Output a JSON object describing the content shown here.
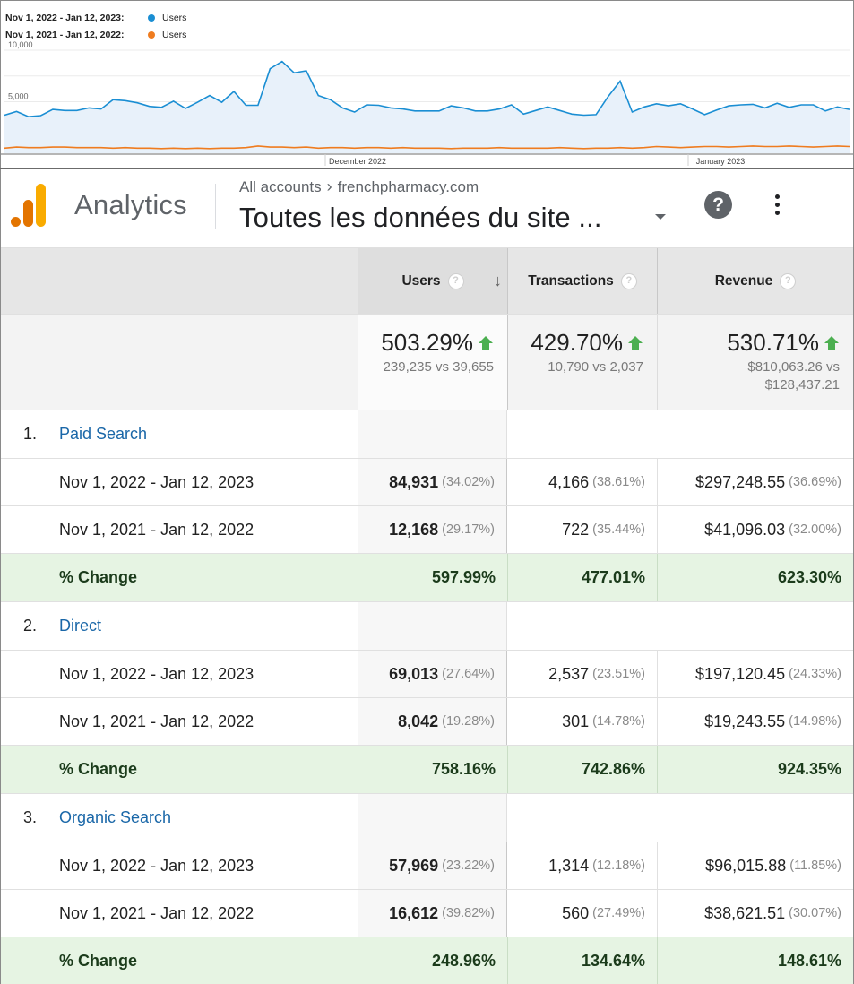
{
  "chart": {
    "legend": [
      {
        "period": "Nov 1, 2022 - Jan 12, 2023:",
        "series": "Users",
        "color": "#1a8ed3"
      },
      {
        "period": "Nov 1, 2021 - Jan 12, 2022:",
        "series": "Users",
        "color": "#ef7c1f"
      }
    ],
    "y_ticks": [
      "10,000",
      "5,000"
    ],
    "x_ticks": [
      "December 2022",
      "January 2023"
    ]
  },
  "chart_data": {
    "type": "line",
    "ylim": [
      0,
      10000
    ],
    "xlabel": "",
    "ylabel": "",
    "series": [
      {
        "name": "Users",
        "period": "Nov 1, 2022 - Jan 12, 2023",
        "color": "#1a8ed3",
        "values": [
          3700,
          4050,
          3550,
          3650,
          4250,
          4150,
          4150,
          4400,
          4300,
          5200,
          5100,
          4900,
          4550,
          4450,
          5050,
          4350,
          4950,
          5600,
          4950,
          6000,
          4650,
          4650,
          8200,
          8900,
          7800,
          8000,
          5600,
          5200,
          4400,
          4000,
          4700,
          4650,
          4400,
          4300,
          4100,
          4100,
          4100,
          4600,
          4400,
          4100,
          4100,
          4300,
          4700,
          3800,
          4150,
          4500,
          4150,
          3800,
          3700,
          3750,
          5500,
          7000,
          4000,
          4500,
          4800,
          4600,
          4800,
          4300,
          3750,
          4200,
          4600,
          4700,
          4750,
          4400,
          4850,
          4450,
          4700,
          4700,
          4100,
          4500,
          4250
        ]
      },
      {
        "name": "Users",
        "period": "Nov 1, 2021 - Jan 12, 2022",
        "color": "#ef7c1f",
        "values": [
          500,
          600,
          550,
          550,
          600,
          600,
          550,
          550,
          550,
          500,
          550,
          500,
          500,
          450,
          500,
          450,
          500,
          450,
          500,
          500,
          550,
          700,
          600,
          600,
          550,
          600,
          500,
          550,
          550,
          500,
          550,
          550,
          500,
          550,
          500,
          500,
          500,
          450,
          500,
          500,
          500,
          550,
          500,
          500,
          500,
          500,
          550,
          500,
          450,
          500,
          500,
          550,
          500,
          550,
          650,
          600,
          550,
          600,
          650,
          650,
          600,
          650,
          700,
          650,
          650,
          700,
          650,
          600,
          650,
          700,
          650
        ]
      }
    ]
  },
  "header": {
    "app_name": "Analytics",
    "breadcrumb_root": "All accounts",
    "breadcrumb_sep": "›",
    "property": "frenchpharmacy.com",
    "view": "Toutes les données du site ...",
    "help_label": "?"
  },
  "table": {
    "columns": [
      "Users",
      "Transactions",
      "Revenue"
    ],
    "summary": {
      "users": {
        "change": "503.29%",
        "compare": "239,235 vs 39,655"
      },
      "transactions": {
        "change": "429.70%",
        "compare": "10,790 vs 2,037"
      },
      "revenue": {
        "change": "530.71%",
        "compare_a": "$810,063.26 vs",
        "compare_b": "$128,437.21"
      }
    },
    "channels": [
      {
        "num": "1.",
        "name": "Paid Search",
        "current": {
          "period": "Nov 1, 2022 - Jan 12, 2023",
          "users": "84,931",
          "users_pct": "(34.02%)",
          "tx": "4,166",
          "tx_pct": "(38.61%)",
          "rev": "$297,248.55",
          "rev_pct": "(36.69%)"
        },
        "previous": {
          "period": "Nov 1, 2021 - Jan 12, 2022",
          "users": "12,168",
          "users_pct": "(29.17%)",
          "tx": "722",
          "tx_pct": "(35.44%)",
          "rev": "$41,096.03",
          "rev_pct": "(32.00%)"
        },
        "change": {
          "label": "% Change",
          "users": "597.99%",
          "tx": "477.01%",
          "rev": "623.30%"
        }
      },
      {
        "num": "2.",
        "name": "Direct",
        "current": {
          "period": "Nov 1, 2022 - Jan 12, 2023",
          "users": "69,013",
          "users_pct": "(27.64%)",
          "tx": "2,537",
          "tx_pct": "(23.51%)",
          "rev": "$197,120.45",
          "rev_pct": "(24.33%)"
        },
        "previous": {
          "period": "Nov 1, 2021 - Jan 12, 2022",
          "users": "8,042",
          "users_pct": "(19.28%)",
          "tx": "301",
          "tx_pct": "(14.78%)",
          "rev": "$19,243.55",
          "rev_pct": "(14.98%)"
        },
        "change": {
          "label": "% Change",
          "users": "758.16%",
          "tx": "742.86%",
          "rev": "924.35%"
        }
      },
      {
        "num": "3.",
        "name": "Organic Search",
        "current": {
          "period": "Nov 1, 2022 - Jan 12, 2023",
          "users": "57,969",
          "users_pct": "(23.22%)",
          "tx": "1,314",
          "tx_pct": "(12.18%)",
          "rev": "$96,015.88",
          "rev_pct": "(11.85%)"
        },
        "previous": {
          "period": "Nov 1, 2021 - Jan 12, 2022",
          "users": "16,612",
          "users_pct": "(39.82%)",
          "tx": "560",
          "tx_pct": "(27.49%)",
          "rev": "$38,621.51",
          "rev_pct": "(30.07%)"
        },
        "change": {
          "label": "% Change",
          "users": "248.96%",
          "tx": "134.64%",
          "rev": "148.61%"
        }
      }
    ]
  }
}
